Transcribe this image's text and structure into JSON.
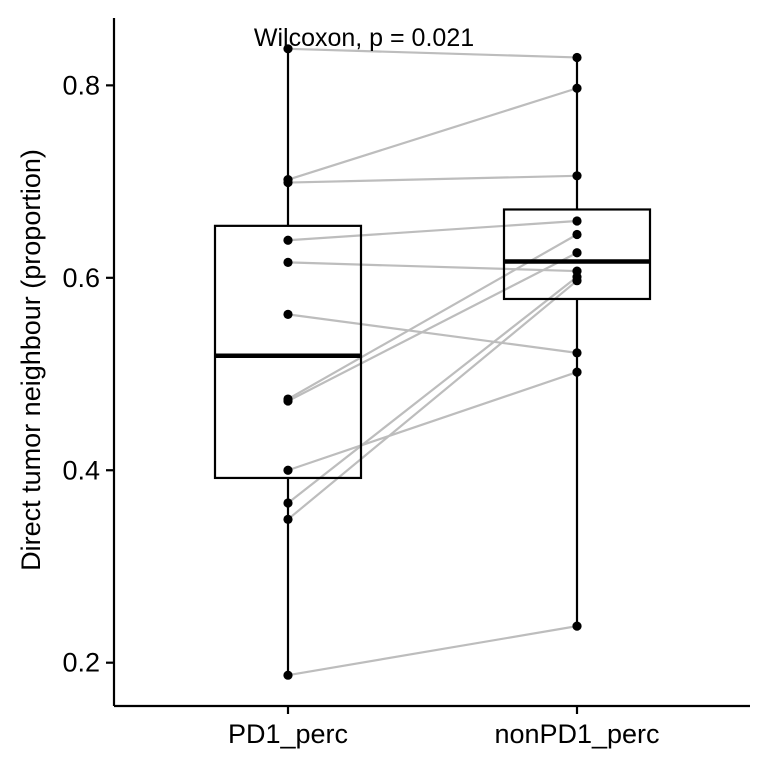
{
  "chart_data": {
    "type": "boxplot",
    "categories": [
      "PD1_perc",
      "nonPD1_perc"
    ],
    "ylabel": "Direct tumor neighbour (proportion)",
    "xlabel": "",
    "ylim": [
      0.155,
      0.87
    ],
    "yticks": [
      0.2,
      0.4,
      0.6,
      0.8
    ],
    "ytick_labels": [
      "0.2",
      "0.4",
      "0.6",
      "0.8"
    ],
    "annotation": "Wilcoxon, p = 0.021",
    "grid": false,
    "legend": "none",
    "boxes": [
      {
        "category": "PD1_perc",
        "whisker_low": 0.187,
        "q1": 0.392,
        "median": 0.519,
        "q3": 0.654,
        "whisker_high": 0.838
      },
      {
        "category": "nonPD1_perc",
        "whisker_low": 0.238,
        "q1": 0.578,
        "median": 0.617,
        "q3": 0.671,
        "whisker_high": 0.828
      }
    ],
    "pairs": [
      [
        0.838,
        0.829
      ],
      [
        0.702,
        0.797
      ],
      [
        0.699,
        0.706
      ],
      [
        0.639,
        0.659
      ],
      [
        0.616,
        0.607
      ],
      [
        0.562,
        0.522
      ],
      [
        0.474,
        0.645
      ],
      [
        0.472,
        0.626
      ],
      [
        0.4,
        0.502
      ],
      [
        0.366,
        0.601
      ],
      [
        0.349,
        0.597
      ],
      [
        0.187,
        0.238
      ]
    ],
    "colors": {
      "box": "#000000",
      "points": "#000000",
      "pair_lines": "#bdbdbd",
      "axis": "#000000"
    }
  }
}
